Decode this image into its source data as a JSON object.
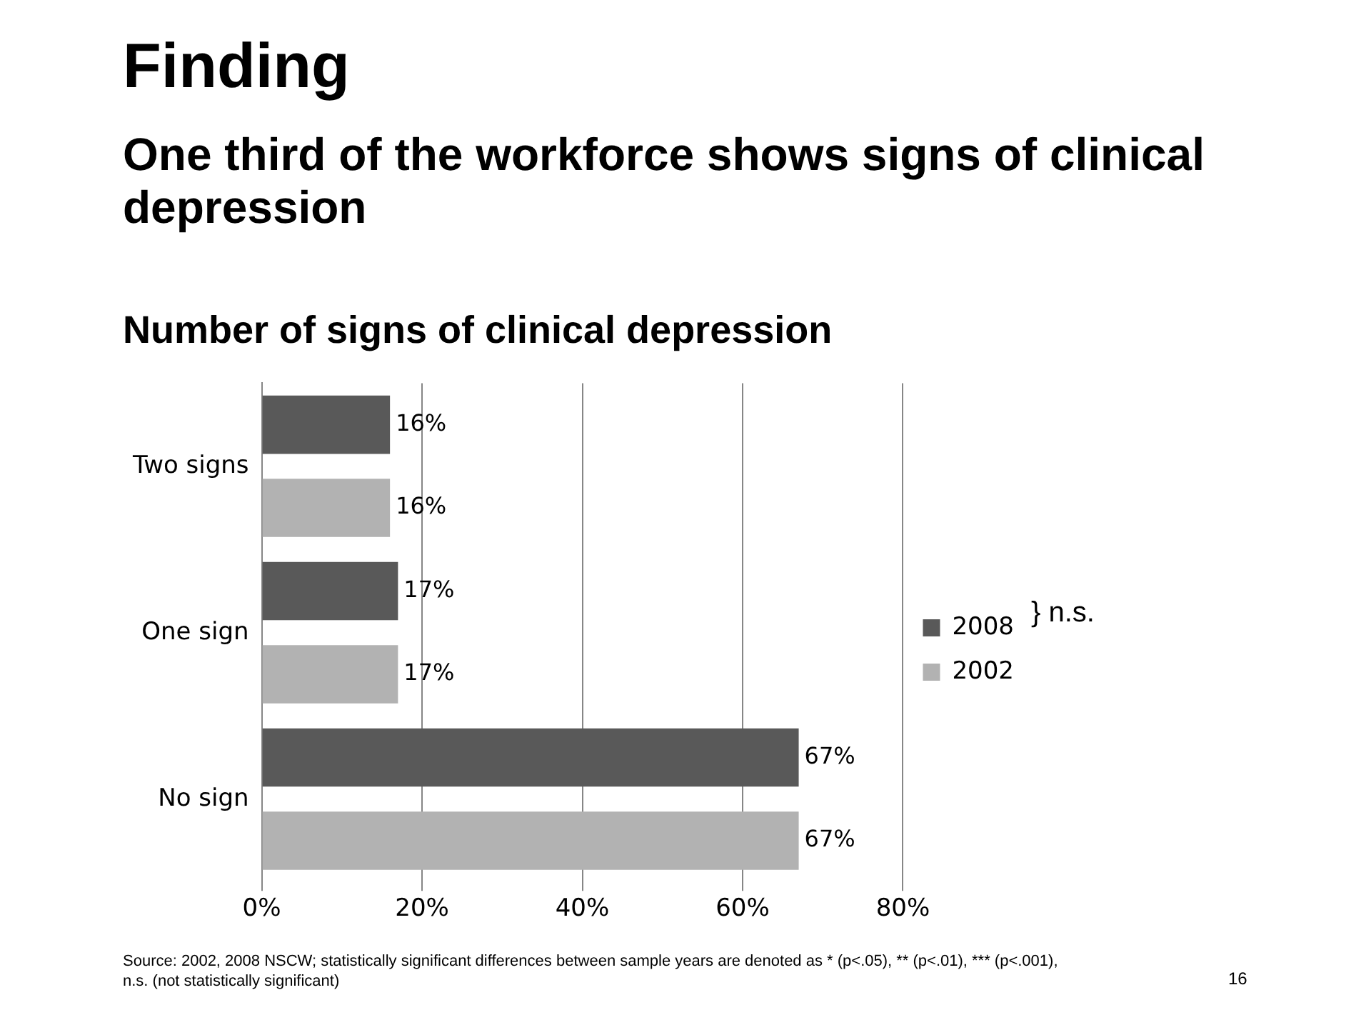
{
  "chart_data": {
    "type": "bar",
    "orientation": "horizontal",
    "title": "Number of signs of clinical depression",
    "categories": [
      "Two signs",
      "One sign",
      "No sign"
    ],
    "series": [
      {
        "name": "2008",
        "color": "#595959",
        "values": [
          16,
          17,
          67
        ],
        "value_labels": [
          "16%",
          "17%",
          "67%"
        ]
      },
      {
        "name": "2002",
        "color": "#b2b2b2",
        "values": [
          16,
          17,
          67
        ],
        "value_labels": [
          "16%",
          "17%",
          "67%"
        ]
      }
    ],
    "xlim": [
      0,
      80
    ],
    "xticks": [
      {
        "value": 0,
        "label": "0%"
      },
      {
        "value": 20,
        "label": "20%"
      },
      {
        "value": 40,
        "label": "40%"
      },
      {
        "value": 60,
        "label": "60%"
      },
      {
        "value": 80,
        "label": "80%"
      }
    ],
    "grid": "x",
    "legend": "right",
    "annotations": [
      "Finding",
      "One third of the workforce shows signs of clinical depression",
      "} n.s.",
      "Source: 2002, 2008 NSCW; statistically significant differences between sample years are denoted as * (p<.05), ** (p<.01), *** (p<.001), n.s. (not statistically significant)",
      "16"
    ]
  }
}
